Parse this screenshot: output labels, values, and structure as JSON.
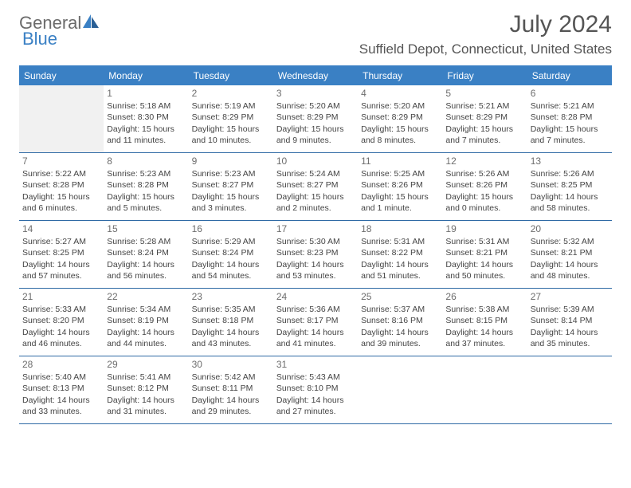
{
  "brand": {
    "word1": "General",
    "word2": "Blue"
  },
  "title": "July 2024",
  "location": "Suffield Depot, Connecticut, United States",
  "colors": {
    "header_blue": "#3a80c4",
    "border_blue": "#2f6aa5",
    "text_gray": "#555555",
    "body_text": "#444444",
    "empty_bg": "#f1f1f1"
  },
  "layout": {
    "columns": 7,
    "rows": 5,
    "cell_font_size": 10.5
  },
  "weekdays": [
    "Sunday",
    "Monday",
    "Tuesday",
    "Wednesday",
    "Thursday",
    "Friday",
    "Saturday"
  ],
  "weeks": [
    [
      null,
      {
        "n": "1",
        "l1": "Sunrise: 5:18 AM",
        "l2": "Sunset: 8:30 PM",
        "l3": "Daylight: 15 hours",
        "l4": "and 11 minutes."
      },
      {
        "n": "2",
        "l1": "Sunrise: 5:19 AM",
        "l2": "Sunset: 8:29 PM",
        "l3": "Daylight: 15 hours",
        "l4": "and 10 minutes."
      },
      {
        "n": "3",
        "l1": "Sunrise: 5:20 AM",
        "l2": "Sunset: 8:29 PM",
        "l3": "Daylight: 15 hours",
        "l4": "and 9 minutes."
      },
      {
        "n": "4",
        "l1": "Sunrise: 5:20 AM",
        "l2": "Sunset: 8:29 PM",
        "l3": "Daylight: 15 hours",
        "l4": "and 8 minutes."
      },
      {
        "n": "5",
        "l1": "Sunrise: 5:21 AM",
        "l2": "Sunset: 8:29 PM",
        "l3": "Daylight: 15 hours",
        "l4": "and 7 minutes."
      },
      {
        "n": "6",
        "l1": "Sunrise: 5:21 AM",
        "l2": "Sunset: 8:28 PM",
        "l3": "Daylight: 15 hours",
        "l4": "and 7 minutes."
      }
    ],
    [
      {
        "n": "7",
        "l1": "Sunrise: 5:22 AM",
        "l2": "Sunset: 8:28 PM",
        "l3": "Daylight: 15 hours",
        "l4": "and 6 minutes."
      },
      {
        "n": "8",
        "l1": "Sunrise: 5:23 AM",
        "l2": "Sunset: 8:28 PM",
        "l3": "Daylight: 15 hours",
        "l4": "and 5 minutes."
      },
      {
        "n": "9",
        "l1": "Sunrise: 5:23 AM",
        "l2": "Sunset: 8:27 PM",
        "l3": "Daylight: 15 hours",
        "l4": "and 3 minutes."
      },
      {
        "n": "10",
        "l1": "Sunrise: 5:24 AM",
        "l2": "Sunset: 8:27 PM",
        "l3": "Daylight: 15 hours",
        "l4": "and 2 minutes."
      },
      {
        "n": "11",
        "l1": "Sunrise: 5:25 AM",
        "l2": "Sunset: 8:26 PM",
        "l3": "Daylight: 15 hours",
        "l4": "and 1 minute."
      },
      {
        "n": "12",
        "l1": "Sunrise: 5:26 AM",
        "l2": "Sunset: 8:26 PM",
        "l3": "Daylight: 15 hours",
        "l4": "and 0 minutes."
      },
      {
        "n": "13",
        "l1": "Sunrise: 5:26 AM",
        "l2": "Sunset: 8:25 PM",
        "l3": "Daylight: 14 hours",
        "l4": "and 58 minutes."
      }
    ],
    [
      {
        "n": "14",
        "l1": "Sunrise: 5:27 AM",
        "l2": "Sunset: 8:25 PM",
        "l3": "Daylight: 14 hours",
        "l4": "and 57 minutes."
      },
      {
        "n": "15",
        "l1": "Sunrise: 5:28 AM",
        "l2": "Sunset: 8:24 PM",
        "l3": "Daylight: 14 hours",
        "l4": "and 56 minutes."
      },
      {
        "n": "16",
        "l1": "Sunrise: 5:29 AM",
        "l2": "Sunset: 8:24 PM",
        "l3": "Daylight: 14 hours",
        "l4": "and 54 minutes."
      },
      {
        "n": "17",
        "l1": "Sunrise: 5:30 AM",
        "l2": "Sunset: 8:23 PM",
        "l3": "Daylight: 14 hours",
        "l4": "and 53 minutes."
      },
      {
        "n": "18",
        "l1": "Sunrise: 5:31 AM",
        "l2": "Sunset: 8:22 PM",
        "l3": "Daylight: 14 hours",
        "l4": "and 51 minutes."
      },
      {
        "n": "19",
        "l1": "Sunrise: 5:31 AM",
        "l2": "Sunset: 8:21 PM",
        "l3": "Daylight: 14 hours",
        "l4": "and 50 minutes."
      },
      {
        "n": "20",
        "l1": "Sunrise: 5:32 AM",
        "l2": "Sunset: 8:21 PM",
        "l3": "Daylight: 14 hours",
        "l4": "and 48 minutes."
      }
    ],
    [
      {
        "n": "21",
        "l1": "Sunrise: 5:33 AM",
        "l2": "Sunset: 8:20 PM",
        "l3": "Daylight: 14 hours",
        "l4": "and 46 minutes."
      },
      {
        "n": "22",
        "l1": "Sunrise: 5:34 AM",
        "l2": "Sunset: 8:19 PM",
        "l3": "Daylight: 14 hours",
        "l4": "and 44 minutes."
      },
      {
        "n": "23",
        "l1": "Sunrise: 5:35 AM",
        "l2": "Sunset: 8:18 PM",
        "l3": "Daylight: 14 hours",
        "l4": "and 43 minutes."
      },
      {
        "n": "24",
        "l1": "Sunrise: 5:36 AM",
        "l2": "Sunset: 8:17 PM",
        "l3": "Daylight: 14 hours",
        "l4": "and 41 minutes."
      },
      {
        "n": "25",
        "l1": "Sunrise: 5:37 AM",
        "l2": "Sunset: 8:16 PM",
        "l3": "Daylight: 14 hours",
        "l4": "and 39 minutes."
      },
      {
        "n": "26",
        "l1": "Sunrise: 5:38 AM",
        "l2": "Sunset: 8:15 PM",
        "l3": "Daylight: 14 hours",
        "l4": "and 37 minutes."
      },
      {
        "n": "27",
        "l1": "Sunrise: 5:39 AM",
        "l2": "Sunset: 8:14 PM",
        "l3": "Daylight: 14 hours",
        "l4": "and 35 minutes."
      }
    ],
    [
      {
        "n": "28",
        "l1": "Sunrise: 5:40 AM",
        "l2": "Sunset: 8:13 PM",
        "l3": "Daylight: 14 hours",
        "l4": "and 33 minutes."
      },
      {
        "n": "29",
        "l1": "Sunrise: 5:41 AM",
        "l2": "Sunset: 8:12 PM",
        "l3": "Daylight: 14 hours",
        "l4": "and 31 minutes."
      },
      {
        "n": "30",
        "l1": "Sunrise: 5:42 AM",
        "l2": "Sunset: 8:11 PM",
        "l3": "Daylight: 14 hours",
        "l4": "and 29 minutes."
      },
      {
        "n": "31",
        "l1": "Sunrise: 5:43 AM",
        "l2": "Sunset: 8:10 PM",
        "l3": "Daylight: 14 hours",
        "l4": "and 27 minutes."
      },
      null,
      null,
      null
    ]
  ]
}
